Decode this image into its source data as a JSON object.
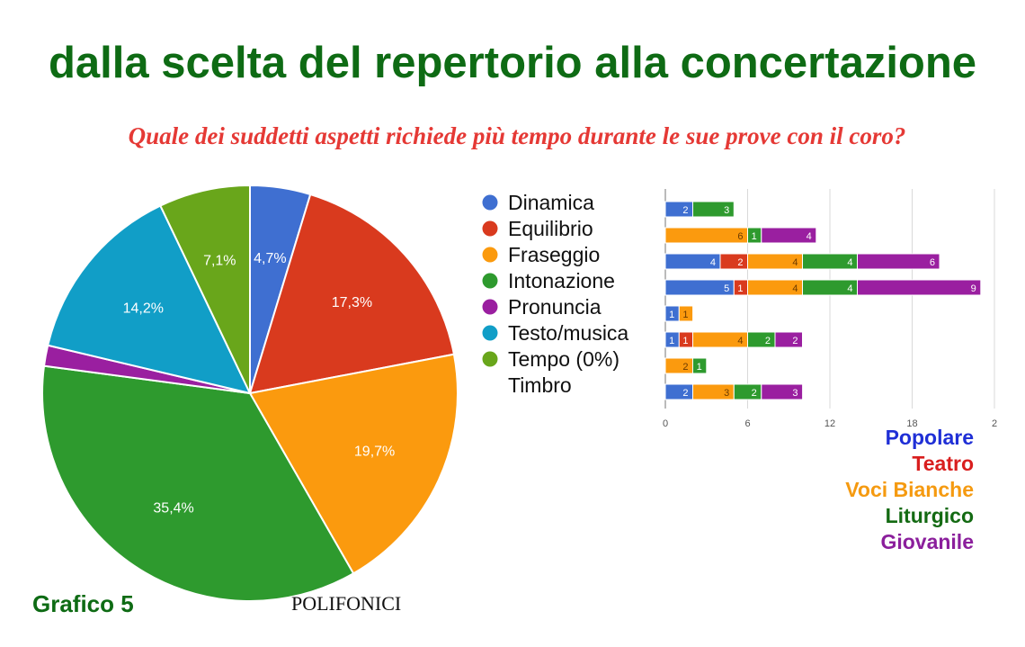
{
  "title": "dalla scelta del repertorio alla concertazione",
  "subtitle": "Quale dei suddetti aspetti richiede più tempo durante le sue prove con il coro?",
  "footer": {
    "label": "Grafico 5",
    "group": "POLIFONICI"
  },
  "chart_data": [
    {
      "type": "pie",
      "slices": [
        {
          "name": "Dinamica",
          "value": 4.7,
          "label": "4,7%",
          "color": "#3f6fd1"
        },
        {
          "name": "Equilibrio",
          "value": 17.3,
          "label": "17,3%",
          "color": "#d93a1e"
        },
        {
          "name": "Fraseggio",
          "value": 19.7,
          "label": "19,7%",
          "color": "#fb9a0e"
        },
        {
          "name": "Intonazione",
          "value": 35.4,
          "label": "35,4%",
          "color": "#2e9a2e"
        },
        {
          "name": "Pronuncia",
          "value": 1.6,
          "label": "",
          "color": "#9a1fa0"
        },
        {
          "name": "Testo/musica",
          "value": 14.2,
          "label": "14,2%",
          "color": "#119ec7"
        },
        {
          "name": "Tempo (0%)",
          "value": 0,
          "label": "",
          "color": "#69a61b"
        },
        {
          "name": "Timbro",
          "value": 7.1,
          "label": "7,1%",
          "color": "#69a61b"
        }
      ],
      "legend": [
        {
          "label": "Dinamica",
          "color": "#3f6fd1"
        },
        {
          "label": "Equilibrio",
          "color": "#d93a1e"
        },
        {
          "label": "Fraseggio",
          "color": "#fb9a0e"
        },
        {
          "label": "Intonazione",
          "color": "#2e9a2e"
        },
        {
          "label": "Pronuncia",
          "color": "#9a1fa0"
        },
        {
          "label": "Testo/musica",
          "color": "#119ec7"
        },
        {
          "label": "Tempo (0%)",
          "color": "#69a61b"
        },
        {
          "label": "Timbro",
          "color": ""
        }
      ]
    },
    {
      "type": "bar",
      "orientation": "horizontal",
      "stacked": true,
      "categories": [
        "Dinamica",
        "Equilibrio",
        "Fraseggio",
        "Intonazione",
        "Pronuncia",
        "Testo/musica",
        "Tempo (0%)",
        "Timbro"
      ],
      "series": [
        {
          "name": "Popolare",
          "color": "#3f6fd1",
          "values": [
            2,
            0,
            4,
            5,
            1,
            1,
            0,
            2
          ]
        },
        {
          "name": "Teatro",
          "color": "#d93a1e",
          "values": [
            0,
            0,
            2,
            1,
            0,
            1,
            0,
            0
          ]
        },
        {
          "name": "Voci Bianche",
          "color": "#fb9a0e",
          "values": [
            0,
            6,
            4,
            4,
            1,
            4,
            2,
            3
          ]
        },
        {
          "name": "Liturgico",
          "color": "#2e9a2e",
          "values": [
            3,
            1,
            4,
            4,
            0,
            2,
            1,
            2
          ]
        },
        {
          "name": "Giovanile",
          "color": "#9a1fa0",
          "values": [
            0,
            4,
            6,
            9,
            0,
            2,
            0,
            3
          ]
        }
      ],
      "xticks": [
        "0",
        "6",
        "12",
        "18",
        "2"
      ],
      "xlim": [
        0,
        24
      ],
      "grid": true,
      "legend_colors": [
        "#1f2fd6",
        "#d91e1e",
        "#f59a10",
        "#136a12",
        "#8b1f9c"
      ]
    }
  ]
}
